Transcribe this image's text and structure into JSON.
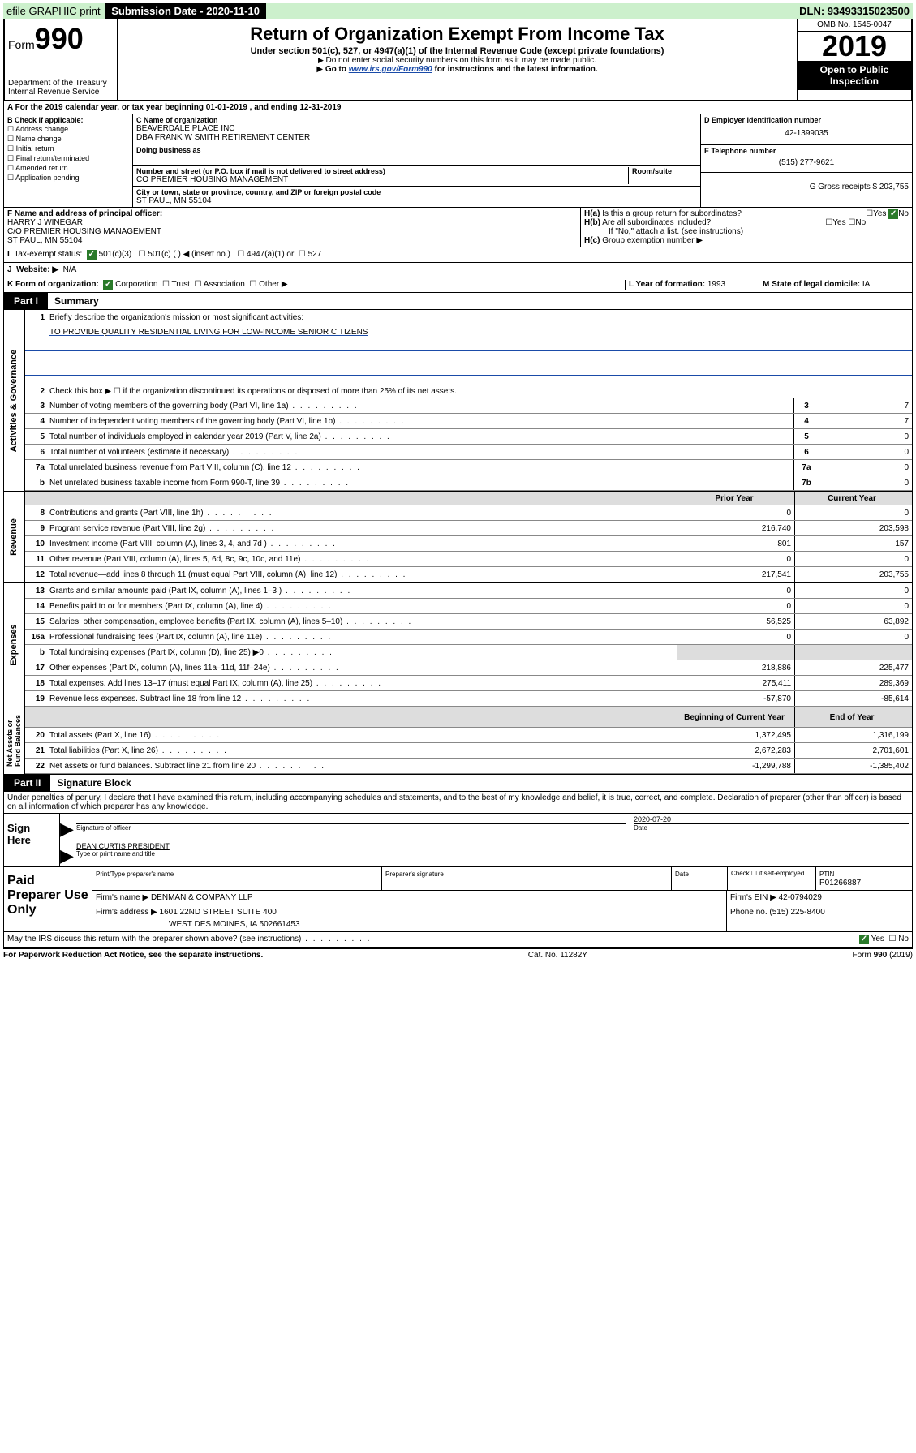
{
  "topbar": {
    "efile": "efile GRAPHIC print",
    "submission_label": "Submission Date - 2020-11-10",
    "dln": "DLN: 93493315023500"
  },
  "header": {
    "form": "Form",
    "num": "990",
    "dept1": "Department of the Treasury",
    "dept2": "Internal Revenue Service",
    "title": "Return of Organization Exempt From Income Tax",
    "sub": "Under section 501(c), 527, or 4947(a)(1) of the Internal Revenue Code (except private foundations)",
    "note1": "Do not enter social security numbers on this form as it may be made public.",
    "note2a": "Go to ",
    "note2link": "www.irs.gov/Form990",
    "note2b": " for instructions and the latest information.",
    "omb": "OMB No. 1545-0047",
    "year": "2019",
    "open": "Open to Public Inspection"
  },
  "sectionA": "For the 2019 calendar year, or tax year beginning 01-01-2019   , and ending 12-31-2019",
  "boxB": {
    "label": "B Check if applicable:",
    "items": [
      "Address change",
      "Name change",
      "Initial return",
      "Final return/terminated",
      "Amended return",
      "Application pending"
    ]
  },
  "boxC": {
    "name_label": "C Name of organization",
    "name1": "BEAVERDALE PLACE INC",
    "name2": "DBA FRANK W SMITH RETIREMENT CENTER",
    "dba_label": "Doing business as",
    "addr_label": "Number and street (or P.O. box if mail is not delivered to street address)",
    "room_label": "Room/suite",
    "addr": "CO PREMIER HOUSING MANAGEMENT",
    "city_label": "City or town, state or province, country, and ZIP or foreign postal code",
    "city": "ST PAUL, MN  55104"
  },
  "boxD": {
    "label": "D Employer identification number",
    "ein": "42-1399035",
    "tel_label": "E Telephone number",
    "tel": "(515) 277-9621",
    "gross_label": "G Gross receipts $ ",
    "gross": "203,755"
  },
  "boxF": {
    "label": "F  Name and address of principal officer:",
    "name": "HARRY J WINEGAR",
    "addr1": "C/O PREMIER HOUSING MANAGEMENT",
    "addr2": "ST PAUL, MN  55104"
  },
  "boxH": {
    "a": "Is this a group return for subordinates?",
    "b": "Are all subordinates included?",
    "b2": "If \"No,\" attach a list. (see instructions)",
    "c": "Group exemption number ▶"
  },
  "taxExempt": {
    "label": "Tax-exempt status:",
    "opt1": "501(c)(3)",
    "opt2": "501(c) (   ) ◀ (insert no.)",
    "opt3": "4947(a)(1) or",
    "opt4": "527"
  },
  "website": {
    "label": "Website: ▶",
    "value": "N/A"
  },
  "formOrg": {
    "label": "K Form of organization:",
    "opts": [
      "Corporation",
      "Trust",
      "Association",
      "Other ▶"
    ]
  },
  "yearFormed": {
    "label": "L Year of formation: ",
    "value": "1993"
  },
  "domicile": {
    "label": "M State of legal domicile: ",
    "value": "IA"
  },
  "part1": {
    "tab": "Part I",
    "title": "Summary",
    "q1": "Briefly describe the organization's mission or most significant activities:",
    "mission": "TO PROVIDE QUALITY RESIDENTIAL LIVING FOR LOW-INCOME SENIOR CITIZENS",
    "q2": "Check this box ▶ ☐  if the organization discontinued its operations or disposed of more than 25% of its net assets.",
    "rows_gov": [
      {
        "n": "3",
        "t": "Number of voting members of the governing body (Part VI, line 1a)",
        "box": "3",
        "v": "7"
      },
      {
        "n": "4",
        "t": "Number of independent voting members of the governing body (Part VI, line 1b)",
        "box": "4",
        "v": "7"
      },
      {
        "n": "5",
        "t": "Total number of individuals employed in calendar year 2019 (Part V, line 2a)",
        "box": "5",
        "v": "0"
      },
      {
        "n": "6",
        "t": "Total number of volunteers (estimate if necessary)",
        "box": "6",
        "v": "0"
      },
      {
        "n": "7a",
        "t": "Total unrelated business revenue from Part VIII, column (C), line 12",
        "box": "7a",
        "v": "0"
      },
      {
        "n": "b",
        "t": "Net unrelated business taxable income from Form 990-T, line 39",
        "box": "7b",
        "v": "0"
      }
    ],
    "hdr_prior": "Prior Year",
    "hdr_current": "Current Year",
    "rows_rev": [
      {
        "n": "8",
        "t": "Contributions and grants (Part VIII, line 1h)",
        "p": "0",
        "c": "0"
      },
      {
        "n": "9",
        "t": "Program service revenue (Part VIII, line 2g)",
        "p": "216,740",
        "c": "203,598"
      },
      {
        "n": "10",
        "t": "Investment income (Part VIII, column (A), lines 3, 4, and 7d )",
        "p": "801",
        "c": "157"
      },
      {
        "n": "11",
        "t": "Other revenue (Part VIII, column (A), lines 5, 6d, 8c, 9c, 10c, and 11e)",
        "p": "0",
        "c": "0"
      },
      {
        "n": "12",
        "t": "Total revenue—add lines 8 through 11 (must equal Part VIII, column (A), line 12)",
        "p": "217,541",
        "c": "203,755"
      }
    ],
    "rows_exp": [
      {
        "n": "13",
        "t": "Grants and similar amounts paid (Part IX, column (A), lines 1–3 )",
        "p": "0",
        "c": "0"
      },
      {
        "n": "14",
        "t": "Benefits paid to or for members (Part IX, column (A), line 4)",
        "p": "0",
        "c": "0"
      },
      {
        "n": "15",
        "t": "Salaries, other compensation, employee benefits (Part IX, column (A), lines 5–10)",
        "p": "56,525",
        "c": "63,892"
      },
      {
        "n": "16a",
        "t": "Professional fundraising fees (Part IX, column (A), line 11e)",
        "p": "0",
        "c": "0"
      },
      {
        "n": "b",
        "t": "Total fundraising expenses (Part IX, column (D), line 25) ▶0",
        "p": "",
        "c": "",
        "shaded": true
      },
      {
        "n": "17",
        "t": "Other expenses (Part IX, column (A), lines 11a–11d, 11f–24e)",
        "p": "218,886",
        "c": "225,477"
      },
      {
        "n": "18",
        "t": "Total expenses. Add lines 13–17 (must equal Part IX, column (A), line 25)",
        "p": "275,411",
        "c": "289,369"
      },
      {
        "n": "19",
        "t": "Revenue less expenses. Subtract line 18 from line 12",
        "p": "-57,870",
        "c": "-85,614"
      }
    ],
    "hdr_begin": "Beginning of Current Year",
    "hdr_end": "End of Year",
    "rows_net": [
      {
        "n": "20",
        "t": "Total assets (Part X, line 16)",
        "p": "1,372,495",
        "c": "1,316,199"
      },
      {
        "n": "21",
        "t": "Total liabilities (Part X, line 26)",
        "p": "2,672,283",
        "c": "2,701,601"
      },
      {
        "n": "22",
        "t": "Net assets or fund balances. Subtract line 21 from line 20",
        "p": "-1,299,788",
        "c": "-1,385,402"
      }
    ]
  },
  "part2": {
    "tab": "Part II",
    "title": "Signature Block",
    "perjury": "Under penalties of perjury, I declare that I have examined this return, including accompanying schedules and statements, and to the best of my knowledge and belief, it is true, correct, and complete. Declaration of preparer (other than officer) is based on all information of which preparer has any knowledge."
  },
  "sign": {
    "here": "Sign Here",
    "sig_label": "Signature of officer",
    "date": "2020-07-20",
    "date_label": "Date",
    "name": "DEAN CURTIS PRESIDENT",
    "name_label": "Type or print name and title"
  },
  "prep": {
    "label": "Paid Preparer Use Only",
    "h1": "Print/Type preparer's name",
    "h2": "Preparer's signature",
    "h3": "Date",
    "h4_check": "Check ☐ if self-employed",
    "h5": "PTIN",
    "ptin": "P01266887",
    "firm_label": "Firm's name    ▶",
    "firm": "DENMAN & COMPANY LLP",
    "ein_label": "Firm's EIN ▶",
    "ein": "42-0794029",
    "addr_label": "Firm's address ▶",
    "addr1": "1601 22ND STREET SUITE 400",
    "addr2": "WEST DES MOINES, IA  502661453",
    "phone_label": "Phone no. ",
    "phone": "(515) 225-8400"
  },
  "discuss": "May the IRS discuss this return with the preparer shown above? (see instructions)",
  "footer": {
    "left": "For Paperwork Reduction Act Notice, see the separate instructions.",
    "center": "Cat. No. 11282Y",
    "right": "Form 990 (2019)"
  }
}
